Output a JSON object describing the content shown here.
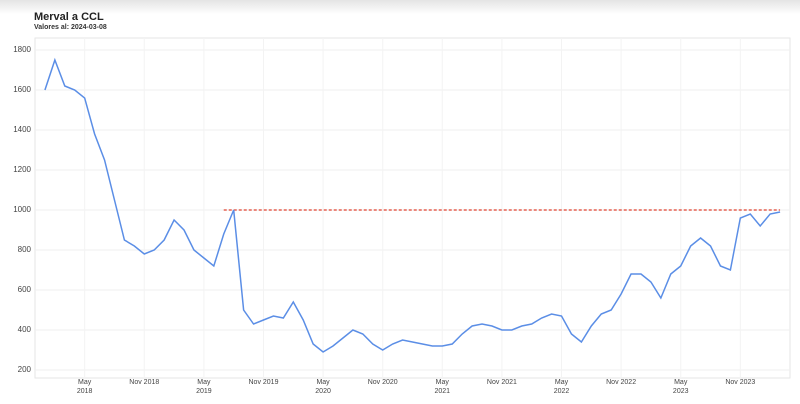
{
  "chart_data": {
    "type": "line",
    "title": "Merval a CCL",
    "subtitle": "Valores al: 2024-03-08",
    "x": [
      "2018-01",
      "2018-02",
      "2018-03",
      "2018-04",
      "2018-05",
      "2018-06",
      "2018-07",
      "2018-08",
      "2018-09",
      "2018-10",
      "2018-11",
      "2018-12",
      "2019-01",
      "2019-02",
      "2019-03",
      "2019-04",
      "2019-05",
      "2019-06",
      "2019-07",
      "2019-08",
      "2019-09",
      "2019-10",
      "2019-11",
      "2019-12",
      "2020-01",
      "2020-02",
      "2020-03",
      "2020-04",
      "2020-05",
      "2020-06",
      "2020-07",
      "2020-08",
      "2020-09",
      "2020-10",
      "2020-11",
      "2020-12",
      "2021-01",
      "2021-02",
      "2021-03",
      "2021-04",
      "2021-05",
      "2021-06",
      "2021-07",
      "2021-08",
      "2021-09",
      "2021-10",
      "2021-11",
      "2021-12",
      "2022-01",
      "2022-02",
      "2022-03",
      "2022-04",
      "2022-05",
      "2022-06",
      "2022-07",
      "2022-08",
      "2022-09",
      "2022-10",
      "2022-11",
      "2022-12",
      "2023-01",
      "2023-02",
      "2023-03",
      "2023-04",
      "2023-05",
      "2023-06",
      "2023-07",
      "2023-08",
      "2023-09",
      "2023-10",
      "2023-11",
      "2023-12",
      "2024-01",
      "2024-02",
      "2024-03"
    ],
    "series": [
      {
        "name": "Merval a CCL",
        "color": "#5b8ee6",
        "values": [
          1600,
          1750,
          1620,
          1600,
          1560,
          1380,
          1250,
          1050,
          850,
          820,
          780,
          800,
          850,
          950,
          900,
          800,
          760,
          720,
          880,
          1000,
          500,
          430,
          450,
          470,
          460,
          540,
          450,
          330,
          290,
          320,
          360,
          400,
          380,
          330,
          300,
          330,
          350,
          340,
          330,
          320,
          320,
          330,
          380,
          420,
          430,
          420,
          400,
          400,
          420,
          430,
          460,
          480,
          470,
          380,
          340,
          420,
          480,
          500,
          580,
          680,
          680,
          640,
          560,
          680,
          720,
          820,
          860,
          820,
          720,
          700,
          960,
          980,
          920,
          980,
          990
        ]
      }
    ],
    "reference_line": {
      "value": 1000,
      "from": "2019-07",
      "to": "2024-03",
      "color": "#e0412f"
    },
    "xlim": [
      "2017-12",
      "2024-04"
    ],
    "xticks": [
      {
        "value": "2018-05",
        "label": "May 2018"
      },
      {
        "value": "2018-11",
        "label": "Nov 2018"
      },
      {
        "value": "2019-05",
        "label": "May 2019"
      },
      {
        "value": "2019-11",
        "label": "Nov 2019"
      },
      {
        "value": "2020-05",
        "label": "May 2020"
      },
      {
        "value": "2020-11",
        "label": "Nov 2020"
      },
      {
        "value": "2021-05",
        "label": "May 2021"
      },
      {
        "value": "2021-11",
        "label": "Nov 2021"
      },
      {
        "value": "2022-05",
        "label": "May 2022"
      },
      {
        "value": "2022-11",
        "label": "Nov 2022"
      },
      {
        "value": "2023-05",
        "label": "May 2023"
      },
      {
        "value": "2023-11",
        "label": "Nov 2023"
      }
    ],
    "ylim": [
      160,
      1860
    ],
    "yticks": [
      200,
      400,
      600,
      800,
      1000,
      1200,
      1400,
      1600,
      1800
    ],
    "grid": true
  }
}
